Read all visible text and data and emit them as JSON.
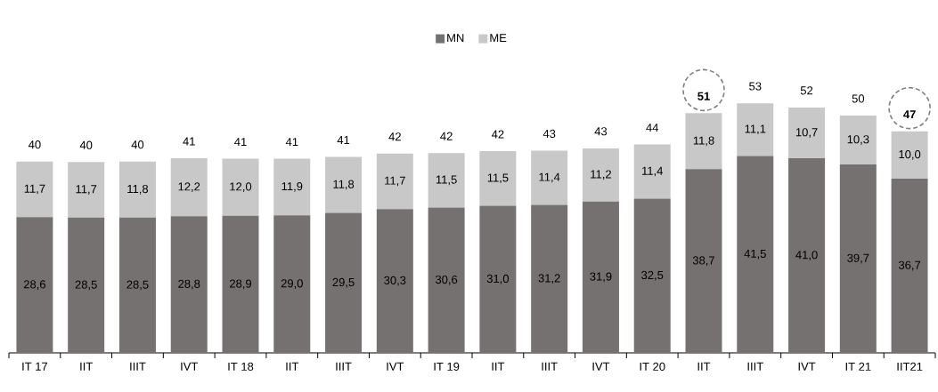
{
  "chart_data": {
    "type": "bar",
    "stacked": true,
    "categories": [
      "IT 17",
      "IIT",
      "IIIT",
      "IVT",
      "IT 18",
      "IIT",
      "IIIT",
      "IVT",
      "IT 19",
      "IIT",
      "IIIT",
      "IVT",
      "IT 20",
      "IIT",
      "IIIT",
      "IVT",
      "IT 21",
      "IIT21"
    ],
    "series": [
      {
        "name": "MN",
        "color": "#767171",
        "values": [
          28.6,
          28.5,
          28.5,
          28.8,
          28.9,
          29.0,
          29.5,
          30.3,
          30.6,
          31.0,
          31.2,
          31.9,
          32.5,
          38.7,
          41.5,
          41.0,
          39.7,
          36.7
        ],
        "value_labels": [
          "28,6",
          "28,5",
          "28,5",
          "28,8",
          "28,9",
          "29,0",
          "29,5",
          "30,3",
          "30,6",
          "31,0",
          "31,2",
          "31,9",
          "32,5",
          "38,7",
          "41,5",
          "41,0",
          "39,7",
          "36,7"
        ]
      },
      {
        "name": "ME",
        "color": "#c8c8c8",
        "values": [
          11.7,
          11.7,
          11.8,
          12.2,
          12.0,
          11.9,
          11.8,
          11.7,
          11.5,
          11.5,
          11.4,
          11.2,
          11.4,
          11.8,
          11.1,
          10.7,
          10.3,
          10.0
        ],
        "value_labels": [
          "11,7",
          "11,7",
          "11,8",
          "12,2",
          "12,0",
          "11,9",
          "11,8",
          "11,7",
          "11,5",
          "11,5",
          "11,4",
          "11,2",
          "11,4",
          "11,8",
          "11,1",
          "10,7",
          "10,3",
          "10,0"
        ]
      }
    ],
    "totals": [
      "40",
      "40",
      "40",
      "41",
      "41",
      "41",
      "41",
      "42",
      "42",
      "42",
      "43",
      "43",
      "44",
      "**51**",
      "53",
      "52",
      "50",
      "**47**"
    ],
    "tick_labels": "x",
    "legend": "top"
  }
}
